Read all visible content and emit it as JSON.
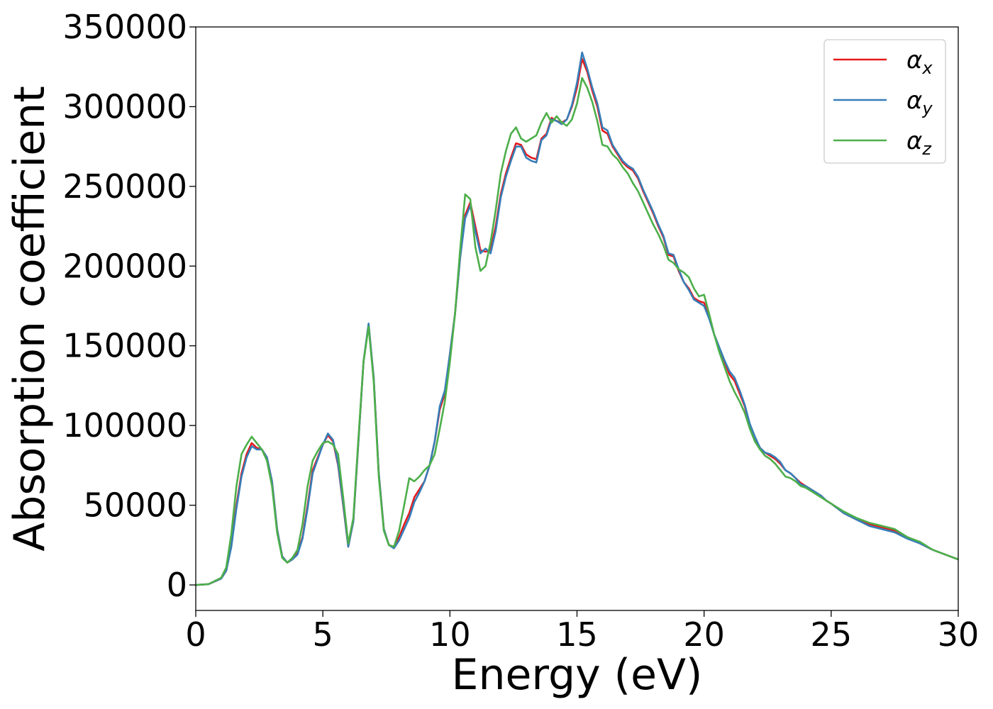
{
  "chart_data": {
    "type": "line",
    "title": "",
    "xlabel": "Energy (eV)",
    "ylabel": "Absorption coefficient",
    "xlim": [
      0,
      30
    ],
    "ylim": [
      -16000,
      350000
    ],
    "xticks": [
      0,
      5,
      10,
      15,
      20,
      25,
      30
    ],
    "yticks": [
      0,
      50000,
      100000,
      150000,
      200000,
      250000,
      300000,
      350000
    ],
    "grid": false,
    "legend_position": "top-right",
    "series": [
      {
        "name": "αx",
        "legend_base": "α",
        "legend_sub": "x",
        "color": "#e41a1c",
        "x": [
          0,
          0.5,
          1.0,
          1.2,
          1.4,
          1.6,
          1.8,
          2.0,
          2.2,
          2.4,
          2.6,
          2.8,
          3.0,
          3.2,
          3.4,
          3.6,
          3.8,
          4.0,
          4.2,
          4.4,
          4.6,
          4.8,
          5.0,
          5.2,
          5.4,
          5.6,
          5.8,
          6.0,
          6.2,
          6.4,
          6.6,
          6.8,
          7.0,
          7.2,
          7.4,
          7.6,
          7.8,
          8.0,
          8.2,
          8.4,
          8.6,
          8.8,
          9.0,
          9.2,
          9.4,
          9.6,
          9.8,
          10.0,
          10.2,
          10.4,
          10.6,
          10.8,
          11.0,
          11.2,
          11.4,
          11.6,
          11.8,
          12.0,
          12.2,
          12.4,
          12.6,
          12.8,
          13.0,
          13.2,
          13.4,
          13.6,
          13.8,
          14.0,
          14.2,
          14.4,
          14.6,
          14.8,
          15.0,
          15.2,
          15.4,
          15.6,
          15.8,
          16.0,
          16.2,
          16.4,
          16.6,
          16.8,
          17.0,
          17.2,
          17.4,
          17.6,
          17.8,
          18.0,
          18.2,
          18.4,
          18.6,
          18.8,
          19.0,
          19.2,
          19.4,
          19.6,
          19.8,
          20.0,
          20.2,
          20.4,
          20.6,
          20.8,
          21.0,
          21.2,
          21.4,
          21.6,
          21.8,
          22.0,
          22.2,
          22.4,
          22.6,
          22.8,
          23.0,
          23.2,
          23.4,
          23.6,
          23.8,
          24.0,
          24.2,
          24.4,
          24.6,
          24.8,
          25.0,
          25.5,
          26.0,
          26.5,
          27.0,
          27.5,
          28.0,
          28.5,
          29.0,
          29.5,
          30.0
        ],
        "y": [
          0,
          500,
          4000,
          9000,
          25000,
          50000,
          70000,
          82000,
          89000,
          86000,
          85000,
          80000,
          65000,
          35000,
          18000,
          14000,
          16000,
          20000,
          30000,
          50000,
          72000,
          80000,
          88000,
          94000,
          90000,
          75000,
          50000,
          24000,
          40000,
          90000,
          140000,
          163000,
          130000,
          70000,
          35000,
          25000,
          24000,
          30000,
          38000,
          45000,
          55000,
          60000,
          65000,
          75000,
          90000,
          110000,
          120000,
          145000,
          170000,
          205000,
          232000,
          240000,
          225000,
          210000,
          209000,
          210000,
          225000,
          245000,
          258000,
          268000,
          277000,
          276000,
          270000,
          268000,
          267000,
          280000,
          283000,
          293000,
          291000,
          290000,
          292000,
          300000,
          312000,
          330000,
          322000,
          310000,
          300000,
          285000,
          283000,
          275000,
          270000,
          265000,
          262000,
          260000,
          255000,
          247000,
          240000,
          233000,
          225000,
          218000,
          207000,
          206000,
          197000,
          190000,
          186000,
          180000,
          178000,
          177000,
          168000,
          157000,
          148000,
          140000,
          132000,
          128000,
          120000,
          112000,
          100000,
          92000,
          86000,
          83000,
          81000,
          79000,
          76000,
          72000,
          70000,
          67000,
          64000,
          62000,
          60000,
          58000,
          56000,
          53000,
          51000,
          45000,
          41000,
          38000,
          36000,
          34000,
          30000,
          26000,
          22000,
          19000,
          16000
        ]
      },
      {
        "name": "αy",
        "legend_base": "α",
        "legend_sub": "y",
        "color": "#377eb8",
        "x": [
          0,
          0.5,
          1.0,
          1.2,
          1.4,
          1.6,
          1.8,
          2.0,
          2.2,
          2.4,
          2.6,
          2.8,
          3.0,
          3.2,
          3.4,
          3.6,
          3.8,
          4.0,
          4.2,
          4.4,
          4.6,
          4.8,
          5.0,
          5.2,
          5.4,
          5.6,
          5.8,
          6.0,
          6.2,
          6.4,
          6.6,
          6.8,
          7.0,
          7.2,
          7.4,
          7.6,
          7.8,
          8.0,
          8.2,
          8.4,
          8.6,
          8.8,
          9.0,
          9.2,
          9.4,
          9.6,
          9.8,
          10.0,
          10.2,
          10.4,
          10.6,
          10.8,
          11.0,
          11.2,
          11.4,
          11.6,
          11.8,
          12.0,
          12.2,
          12.4,
          12.6,
          12.8,
          13.0,
          13.2,
          13.4,
          13.6,
          13.8,
          14.0,
          14.2,
          14.4,
          14.6,
          14.8,
          15.0,
          15.2,
          15.4,
          15.6,
          15.8,
          16.0,
          16.2,
          16.4,
          16.6,
          16.8,
          17.0,
          17.2,
          17.4,
          17.6,
          17.8,
          18.0,
          18.2,
          18.4,
          18.6,
          18.8,
          19.0,
          19.2,
          19.4,
          19.6,
          19.8,
          20.0,
          20.2,
          20.4,
          20.6,
          20.8,
          21.0,
          21.2,
          21.4,
          21.6,
          21.8,
          22.0,
          22.2,
          22.4,
          22.6,
          22.8,
          23.0,
          23.2,
          23.4,
          23.6,
          23.8,
          24.0,
          24.2,
          24.4,
          24.6,
          24.8,
          25.0,
          25.5,
          26.0,
          26.5,
          27.0,
          27.5,
          28.0,
          28.5,
          29.0,
          29.5,
          30.0
        ],
        "y": [
          0,
          500,
          4000,
          9000,
          24000,
          48000,
          68000,
          80000,
          87000,
          85000,
          85000,
          80000,
          65000,
          35000,
          18000,
          14000,
          16000,
          19000,
          29000,
          48000,
          70000,
          79000,
          88000,
          95000,
          91000,
          76000,
          51000,
          24000,
          40000,
          90000,
          140000,
          164000,
          130000,
          70000,
          35000,
          25000,
          23000,
          28000,
          35000,
          42000,
          52000,
          58000,
          65000,
          75000,
          90000,
          112000,
          122000,
          145000,
          170000,
          205000,
          230000,
          238000,
          222000,
          208000,
          211000,
          208000,
          222000,
          243000,
          256000,
          266000,
          275000,
          275000,
          268000,
          266000,
          265000,
          279000,
          282000,
          292000,
          291000,
          289000,
          292000,
          301000,
          315000,
          334000,
          324000,
          312000,
          302000,
          287000,
          285000,
          276000,
          271000,
          266000,
          263000,
          261000,
          256000,
          248000,
          241000,
          234000,
          226000,
          219000,
          208000,
          207000,
          198000,
          190000,
          185000,
          179000,
          177000,
          175000,
          167000,
          157000,
          149000,
          141000,
          134000,
          130000,
          122000,
          113000,
          101000,
          93000,
          86000,
          83000,
          82000,
          80000,
          77000,
          72000,
          70000,
          67000,
          63000,
          62000,
          60000,
          58000,
          56000,
          53000,
          51000,
          45000,
          41000,
          37000,
          35000,
          33000,
          29000,
          26000,
          22000,
          19000,
          16000
        ]
      },
      {
        "name": "αz",
        "legend_base": "α",
        "legend_sub": "z",
        "color": "#4daf4a",
        "x": [
          0,
          0.5,
          1.0,
          1.2,
          1.4,
          1.6,
          1.8,
          2.0,
          2.2,
          2.4,
          2.6,
          2.8,
          3.0,
          3.2,
          3.4,
          3.6,
          3.8,
          4.0,
          4.2,
          4.4,
          4.6,
          4.8,
          5.0,
          5.2,
          5.4,
          5.6,
          5.8,
          6.0,
          6.2,
          6.4,
          6.6,
          6.8,
          7.0,
          7.2,
          7.4,
          7.6,
          7.8,
          8.0,
          8.2,
          8.4,
          8.6,
          8.8,
          9.0,
          9.2,
          9.4,
          9.6,
          9.8,
          10.0,
          10.2,
          10.4,
          10.6,
          10.8,
          11.0,
          11.2,
          11.4,
          11.6,
          11.8,
          12.0,
          12.2,
          12.4,
          12.6,
          12.8,
          13.0,
          13.2,
          13.4,
          13.6,
          13.8,
          14.0,
          14.2,
          14.4,
          14.6,
          14.8,
          15.0,
          15.2,
          15.4,
          15.6,
          15.8,
          16.0,
          16.2,
          16.4,
          16.6,
          16.8,
          17.0,
          17.2,
          17.4,
          17.6,
          17.8,
          18.0,
          18.2,
          18.4,
          18.6,
          18.8,
          19.0,
          19.2,
          19.4,
          19.6,
          19.8,
          20.0,
          20.2,
          20.4,
          20.6,
          20.8,
          21.0,
          21.2,
          21.4,
          21.6,
          21.8,
          22.0,
          22.2,
          22.4,
          22.6,
          22.8,
          23.0,
          23.2,
          23.4,
          23.6,
          23.8,
          24.0,
          24.2,
          24.4,
          24.6,
          24.8,
          25.0,
          25.5,
          26.0,
          26.5,
          27.0,
          27.5,
          28.0,
          28.5,
          29.0,
          29.5,
          30.0
        ],
        "y": [
          0,
          500,
          4500,
          11000,
          32000,
          62000,
          82000,
          88000,
          93000,
          89000,
          85000,
          78000,
          62000,
          33000,
          17000,
          14000,
          17000,
          22000,
          38000,
          62000,
          78000,
          84000,
          89000,
          90000,
          88000,
          82000,
          55000,
          26000,
          42000,
          92000,
          140000,
          162000,
          128000,
          68000,
          34000,
          25000,
          24000,
          34000,
          50000,
          67000,
          65000,
          68000,
          72000,
          75000,
          82000,
          98000,
          115000,
          140000,
          170000,
          210000,
          245000,
          242000,
          212000,
          197000,
          200000,
          215000,
          235000,
          258000,
          272000,
          283000,
          287000,
          280000,
          278000,
          280000,
          282000,
          290000,
          296000,
          290000,
          294000,
          290000,
          288000,
          292000,
          302000,
          318000,
          312000,
          303000,
          291000,
          276000,
          275000,
          270000,
          267000,
          262000,
          258000,
          252000,
          247000,
          240000,
          233000,
          226000,
          220000,
          213000,
          204000,
          202000,
          198000,
          196000,
          193000,
          186000,
          181000,
          182000,
          170000,
          157000,
          146000,
          137000,
          128000,
          121000,
          115000,
          108000,
          98000,
          90000,
          85000,
          81000,
          79000,
          76000,
          72000,
          68000,
          67000,
          65000,
          62000,
          61000,
          59000,
          57000,
          55000,
          53000,
          51000,
          46000,
          42000,
          39000,
          37000,
          35000,
          30000,
          27000,
          22000,
          19000,
          16000
        ]
      }
    ]
  }
}
